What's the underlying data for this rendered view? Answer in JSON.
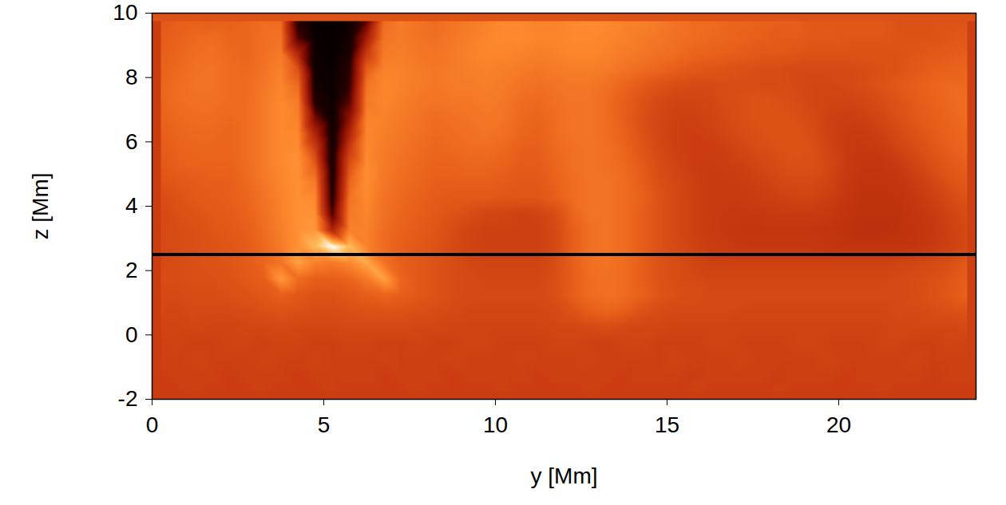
{
  "chart_data": {
    "type": "heatmap",
    "x_label": "y [Mm]",
    "y_label": "z [Mm]",
    "xlim": [
      0,
      24
    ],
    "ylim": [
      -2,
      10
    ],
    "xticks": [
      0,
      5,
      10,
      15,
      20
    ],
    "yticks": [
      -2,
      0,
      2,
      4,
      6,
      8,
      10
    ],
    "hline": 2.5,
    "color_range": [
      0,
      100
    ],
    "cell_y": [
      0.25,
      0.75,
      1.25,
      1.75,
      2.25,
      2.75,
      3.25,
      3.75,
      4.25,
      4.75,
      5.25,
      5.75,
      6.25,
      6.75,
      7.25,
      7.75,
      8.25,
      8.75,
      9.25,
      9.75,
      10.25,
      10.75,
      11.25,
      11.75,
      12.25,
      12.75,
      13.25,
      13.75,
      14.25,
      14.75,
      15.25,
      15.75,
      16.25,
      16.75,
      17.25,
      17.75,
      18.25,
      18.75,
      19.25,
      19.75,
      20.25,
      20.75,
      21.25,
      21.75,
      22.25,
      22.75,
      23.25,
      23.75
    ],
    "cell_z": [
      9.75,
      9.25,
      8.75,
      8.25,
      7.75,
      7.25,
      6.75,
      6.25,
      5.75,
      5.25,
      4.75,
      4.25,
      3.75,
      3.25,
      2.75,
      2.25,
      1.75,
      1.25,
      0.75,
      0.25,
      -0.25,
      -0.75,
      -1.25,
      -1.75
    ],
    "cells": [
      [
        60,
        62,
        63,
        62,
        62,
        64,
        66,
        66,
        10,
        2,
        2,
        4,
        20,
        66,
        70,
        68,
        66,
        68,
        70,
        72,
        74,
        74,
        72,
        72,
        74,
        75,
        74,
        72,
        72,
        70,
        68,
        66,
        66,
        64,
        64,
        63,
        62,
        62,
        60,
        60,
        60,
        60,
        60,
        58,
        58,
        58,
        58,
        58
      ],
      [
        61,
        63,
        65,
        66,
        64,
        64,
        67,
        68,
        18,
        3,
        2,
        6,
        36,
        68,
        70,
        68,
        67,
        69,
        71,
        73,
        74,
        74,
        73,
        73,
        74,
        74,
        73,
        72,
        70,
        69,
        67,
        66,
        65,
        64,
        63,
        62,
        61,
        61,
        60,
        60,
        59,
        59,
        59,
        58,
        58,
        58,
        59,
        60
      ],
      [
        62,
        64,
        66,
        67,
        65,
        64,
        67,
        70,
        40,
        4,
        2,
        8,
        50,
        70,
        71,
        69,
        68,
        70,
        72,
        73,
        73,
        72,
        71,
        72,
        73,
        73,
        72,
        70,
        69,
        67,
        66,
        64,
        63,
        62,
        61,
        60,
        60,
        59,
        58,
        58,
        58,
        58,
        58,
        58,
        59,
        60,
        61,
        62
      ],
      [
        63,
        65,
        67,
        68,
        66,
        65,
        68,
        72,
        58,
        5,
        3,
        12,
        62,
        72,
        72,
        70,
        69,
        70,
        71,
        72,
        71,
        70,
        69,
        70,
        71,
        71,
        70,
        68,
        66,
        64,
        62,
        60,
        59,
        58,
        57,
        56,
        56,
        55,
        55,
        55,
        55,
        56,
        57,
        58,
        60,
        62,
        63,
        64
      ],
      [
        64,
        66,
        68,
        68,
        66,
        66,
        69,
        73,
        66,
        6,
        3,
        14,
        68,
        73,
        72,
        70,
        69,
        70,
        70,
        71,
        70,
        68,
        67,
        68,
        69,
        69,
        67,
        64,
        61,
        58,
        56,
        55,
        55,
        56,
        56,
        56,
        56,
        55,
        54,
        54,
        55,
        56,
        58,
        60,
        62,
        64,
        65,
        65
      ],
      [
        64,
        66,
        67,
        67,
        66,
        66,
        70,
        74,
        70,
        10,
        4,
        20,
        70,
        73,
        71,
        69,
        68,
        69,
        69,
        70,
        69,
        66,
        65,
        67,
        68,
        68,
        66,
        62,
        58,
        55,
        53,
        53,
        54,
        56,
        57,
        58,
        57,
        56,
        54,
        53,
        53,
        54,
        56,
        58,
        61,
        63,
        65,
        66
      ],
      [
        63,
        65,
        66,
        66,
        65,
        66,
        70,
        74,
        72,
        24,
        4,
        30,
        72,
        72,
        70,
        68,
        66,
        67,
        68,
        69,
        68,
        65,
        64,
        66,
        68,
        68,
        66,
        62,
        57,
        54,
        52,
        52,
        53,
        55,
        57,
        58,
        58,
        57,
        55,
        52,
        51,
        52,
        54,
        57,
        60,
        62,
        64,
        66
      ],
      [
        62,
        64,
        65,
        65,
        64,
        66,
        70,
        74,
        74,
        40,
        5,
        40,
        73,
        71,
        69,
        67,
        65,
        66,
        67,
        68,
        67,
        64,
        63,
        66,
        68,
        68,
        66,
        63,
        58,
        54,
        52,
        51,
        52,
        54,
        56,
        57,
        58,
        58,
        56,
        52,
        50,
        50,
        52,
        55,
        58,
        61,
        63,
        65
      ],
      [
        61,
        63,
        64,
        64,
        64,
        66,
        70,
        74,
        75,
        52,
        6,
        50,
        74,
        70,
        68,
        66,
        64,
        65,
        66,
        66,
        65,
        62,
        62,
        65,
        67,
        68,
        67,
        64,
        59,
        55,
        52,
        51,
        51,
        52,
        54,
        56,
        57,
        58,
        57,
        53,
        50,
        49,
        50,
        53,
        56,
        59,
        62,
        64
      ],
      [
        60,
        62,
        63,
        63,
        63,
        66,
        70,
        74,
        76,
        62,
        7,
        58,
        75,
        70,
        67,
        65,
        63,
        63,
        64,
        64,
        63,
        61,
        61,
        64,
        67,
        68,
        67,
        65,
        61,
        56,
        53,
        51,
        50,
        51,
        52,
        54,
        56,
        57,
        57,
        54,
        50,
        48,
        48,
        50,
        53,
        57,
        60,
        62
      ],
      [
        58,
        60,
        61,
        62,
        62,
        65,
        69,
        73,
        76,
        70,
        8,
        64,
        75,
        69,
        66,
        64,
        62,
        62,
        62,
        62,
        61,
        60,
        60,
        63,
        66,
        68,
        68,
        66,
        62,
        57,
        54,
        52,
        50,
        50,
        51,
        52,
        54,
        55,
        55,
        53,
        49,
        47,
        47,
        48,
        51,
        54,
        58,
        60
      ],
      [
        56,
        58,
        60,
        61,
        62,
        64,
        68,
        72,
        76,
        74,
        10,
        68,
        74,
        68,
        65,
        63,
        61,
        60,
        60,
        60,
        59,
        59,
        59,
        62,
        66,
        68,
        68,
        66,
        63,
        58,
        55,
        52,
        50,
        50,
        50,
        51,
        52,
        53,
        53,
        51,
        48,
        46,
        46,
        47,
        49,
        52,
        55,
        58
      ],
      [
        55,
        57,
        58,
        60,
        61,
        63,
        67,
        72,
        76,
        76,
        18,
        70,
        73,
        67,
        64,
        62,
        60,
        58,
        56,
        54,
        53,
        52,
        53,
        56,
        64,
        68,
        68,
        66,
        62,
        58,
        55,
        52,
        50,
        49,
        49,
        49,
        50,
        50,
        50,
        49,
        47,
        46,
        46,
        46,
        48,
        50,
        53,
        56
      ],
      [
        55,
        56,
        57,
        59,
        60,
        62,
        66,
        71,
        76,
        78,
        40,
        72,
        72,
        66,
        63,
        61,
        59,
        56,
        53,
        52,
        52,
        52,
        52,
        55,
        62,
        67,
        68,
        66,
        62,
        58,
        55,
        52,
        50,
        49,
        48,
        48,
        48,
        48,
        48,
        47,
        46,
        45,
        45,
        46,
        47,
        49,
        52,
        55
      ],
      [
        55,
        56,
        57,
        58,
        59,
        61,
        65,
        70,
        76,
        86,
        100,
        86,
        72,
        66,
        62,
        60,
        58,
        55,
        53,
        52,
        52,
        52,
        52,
        55,
        62,
        67,
        68,
        66,
        62,
        58,
        55,
        53,
        51,
        50,
        49,
        49,
        49,
        49,
        49,
        48,
        47,
        47,
        47,
        47,
        48,
        50,
        52,
        55
      ],
      [
        55,
        56,
        57,
        58,
        59,
        61,
        64,
        68,
        80,
        72,
        70,
        74,
        82,
        68,
        62,
        60,
        58,
        56,
        54,
        53,
        53,
        53,
        53,
        56,
        62,
        67,
        68,
        66,
        62,
        58,
        56,
        54,
        52,
        52,
        52,
        52,
        52,
        52,
        52,
        52,
        52,
        52,
        52,
        53,
        54,
        55,
        57,
        60
      ],
      [
        56,
        56,
        57,
        57,
        58,
        60,
        62,
        78,
        66,
        62,
        62,
        64,
        70,
        80,
        64,
        60,
        58,
        56,
        55,
        54,
        54,
        54,
        54,
        57,
        62,
        66,
        67,
        66,
        62,
        58,
        56,
        55,
        54,
        54,
        54,
        54,
        54,
        54,
        54,
        54,
        54,
        54,
        54,
        55,
        56,
        57,
        59,
        62
      ],
      [
        55,
        55,
        56,
        56,
        57,
        58,
        60,
        62,
        60,
        58,
        58,
        60,
        62,
        64,
        62,
        60,
        58,
        56,
        55,
        55,
        55,
        55,
        55,
        57,
        62,
        66,
        67,
        66,
        63,
        59,
        57,
        56,
        55,
        55,
        55,
        55,
        55,
        55,
        55,
        55,
        55,
        55,
        55,
        55,
        56,
        58,
        60,
        63
      ],
      [
        54,
        54,
        55,
        55,
        55,
        56,
        57,
        58,
        57,
        56,
        56,
        57,
        58,
        58,
        58,
        57,
        56,
        55,
        54,
        54,
        54,
        54,
        54,
        55,
        58,
        62,
        64,
        62,
        58,
        56,
        55,
        55,
        55,
        55,
        54,
        54,
        54,
        54,
        54,
        54,
        54,
        54,
        54,
        55,
        55,
        56,
        57,
        58
      ],
      [
        53,
        53,
        54,
        53,
        53,
        54,
        54,
        55,
        54,
        54,
        54,
        55,
        55,
        55,
        55,
        54,
        54,
        53,
        53,
        53,
        53,
        53,
        53,
        54,
        54,
        55,
        56,
        55,
        54,
        54,
        53,
        53,
        53,
        53,
        53,
        53,
        53,
        53,
        53,
        53,
        53,
        53,
        53,
        54,
        54,
        54,
        54,
        55
      ],
      [
        52,
        53,
        52,
        52,
        53,
        53,
        52,
        53,
        53,
        52,
        52,
        53,
        53,
        52,
        52,
        53,
        52,
        52,
        53,
        53,
        52,
        52,
        52,
        53,
        53,
        52,
        52,
        53,
        53,
        52,
        52,
        52,
        53,
        53,
        52,
        52,
        52,
        53,
        53,
        52,
        52,
        52,
        53,
        53,
        52,
        52,
        53,
        53
      ],
      [
        52,
        52,
        53,
        52,
        52,
        52,
        53,
        52,
        52,
        53,
        52,
        52,
        52,
        53,
        52,
        52,
        52,
        53,
        52,
        52,
        52,
        53,
        52,
        52,
        52,
        53,
        52,
        52,
        52,
        52,
        53,
        52,
        52,
        52,
        53,
        52,
        52,
        52,
        52,
        53,
        52,
        52,
        52,
        52,
        53,
        52,
        52,
        52
      ],
      [
        51,
        52,
        52,
        52,
        51,
        52,
        52,
        52,
        51,
        52,
        52,
        52,
        52,
        51,
        52,
        52,
        52,
        51,
        52,
        52,
        52,
        52,
        51,
        52,
        52,
        52,
        52,
        51,
        52,
        52,
        52,
        51,
        52,
        52,
        52,
        52,
        51,
        52,
        52,
        52,
        51,
        52,
        52,
        52,
        52,
        51,
        52,
        52
      ],
      [
        51,
        51,
        52,
        51,
        51,
        51,
        52,
        51,
        51,
        51,
        52,
        51,
        51,
        51,
        51,
        52,
        51,
        51,
        51,
        51,
        52,
        51,
        51,
        51,
        51,
        52,
        51,
        51,
        51,
        51,
        51,
        52,
        51,
        51,
        51,
        51,
        52,
        51,
        51,
        51,
        51,
        51,
        52,
        51,
        51,
        51,
        51,
        51
      ]
    ]
  }
}
